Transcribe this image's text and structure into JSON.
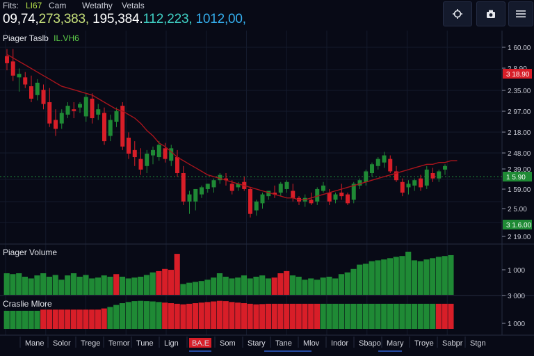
{
  "header": {
    "menu": [
      "Fits:",
      "LI67",
      "Cam",
      "Wetathy",
      "Vetals"
    ],
    "ticker": [
      {
        "text": "09,74,",
        "color": "#ffffff"
      },
      {
        "text": "273,383,",
        "color": "#c6e07a"
      },
      {
        "text": "195,384.",
        "color": "#ffffff"
      },
      {
        "text": "112,223,",
        "color": "#3fd0c4"
      },
      {
        "text": "1012,00,",
        "color": "#35b0f0"
      }
    ],
    "buttons": [
      {
        "name": "target-button",
        "icon": "crosshair-icon"
      },
      {
        "name": "screenshot-button",
        "icon": "camera-icon"
      },
      {
        "name": "menu-button",
        "icon": "hamburger-icon"
      }
    ]
  },
  "panels": {
    "price": {
      "label": "Piager Taslb",
      "sublabel": "IL.VH6"
    },
    "volume": {
      "label": "Piager Volume"
    },
    "strength": {
      "label": "Craslie Mlore"
    }
  },
  "colors": {
    "up": "#1f8a35",
    "down": "#d81e28",
    "ma": "#a8141c",
    "background": "#080a16"
  },
  "chart_data": [
    {
      "type": "candlestick",
      "title": "Piager Taslb",
      "y_tick_labels": [
        "1 60.00",
        "2 8.90",
        "2.35.00",
        "2 97.00",
        "2 18.00",
        "2 48.00",
        "2 39.00",
        "1 59.00",
        "2 5.00",
        "2 19.00"
      ],
      "price_tags": [
        {
          "text": "3 18.90",
          "color": "#d81e28"
        },
        {
          "text": "1 5.90",
          "color": "#1f8a35"
        },
        {
          "text": "3 1.6.00",
          "color": "#1f8a35"
        }
      ],
      "ylim": [
        0,
        1
      ],
      "candles": [
        {
          "o": 0.86,
          "h": 0.9,
          "l": 0.78,
          "c": 0.82
        },
        {
          "o": 0.83,
          "h": 0.9,
          "l": 0.72,
          "c": 0.75
        },
        {
          "o": 0.74,
          "h": 0.79,
          "l": 0.66,
          "c": 0.76
        },
        {
          "o": 0.74,
          "h": 0.77,
          "l": 0.68,
          "c": 0.7
        },
        {
          "o": 0.69,
          "h": 0.75,
          "l": 0.6,
          "c": 0.62
        },
        {
          "o": 0.64,
          "h": 0.73,
          "l": 0.61,
          "c": 0.71
        },
        {
          "o": 0.67,
          "h": 0.7,
          "l": 0.56,
          "c": 0.59
        },
        {
          "o": 0.6,
          "h": 0.68,
          "l": 0.46,
          "c": 0.48
        },
        {
          "o": 0.5,
          "h": 0.56,
          "l": 0.41,
          "c": 0.45
        },
        {
          "o": 0.48,
          "h": 0.56,
          "l": 0.45,
          "c": 0.54
        },
        {
          "o": 0.53,
          "h": 0.6,
          "l": 0.51,
          "c": 0.58
        },
        {
          "o": 0.56,
          "h": 0.6,
          "l": 0.51,
          "c": 0.55
        },
        {
          "o": 0.57,
          "h": 0.6,
          "l": 0.54,
          "c": 0.59
        },
        {
          "o": 0.52,
          "h": 0.65,
          "l": 0.49,
          "c": 0.63
        },
        {
          "o": 0.62,
          "h": 0.65,
          "l": 0.48,
          "c": 0.51
        },
        {
          "o": 0.53,
          "h": 0.59,
          "l": 0.5,
          "c": 0.56
        },
        {
          "o": 0.54,
          "h": 0.57,
          "l": 0.36,
          "c": 0.38
        },
        {
          "o": 0.41,
          "h": 0.53,
          "l": 0.38,
          "c": 0.5
        },
        {
          "o": 0.49,
          "h": 0.57,
          "l": 0.46,
          "c": 0.55
        },
        {
          "o": 0.58,
          "h": 0.6,
          "l": 0.33,
          "c": 0.35
        },
        {
          "o": 0.4,
          "h": 0.43,
          "l": 0.28,
          "c": 0.31
        },
        {
          "o": 0.33,
          "h": 0.38,
          "l": 0.24,
          "c": 0.29
        },
        {
          "o": 0.28,
          "h": 0.34,
          "l": 0.19,
          "c": 0.22
        },
        {
          "o": 0.24,
          "h": 0.33,
          "l": 0.2,
          "c": 0.31
        },
        {
          "o": 0.3,
          "h": 0.35,
          "l": 0.25,
          "c": 0.33
        },
        {
          "o": 0.29,
          "h": 0.38,
          "l": 0.27,
          "c": 0.36
        },
        {
          "o": 0.34,
          "h": 0.37,
          "l": 0.26,
          "c": 0.28
        },
        {
          "o": 0.27,
          "h": 0.36,
          "l": 0.24,
          "c": 0.34
        },
        {
          "o": 0.29,
          "h": 0.33,
          "l": 0.18,
          "c": 0.2
        },
        {
          "o": 0.2,
          "h": 0.24,
          "l": 0.02,
          "c": 0.04
        },
        {
          "o": 0.04,
          "h": 0.1,
          "l": -0.03,
          "c": 0.08
        },
        {
          "o": 0.04,
          "h": 0.11,
          "l": -0.01,
          "c": 0.11
        },
        {
          "o": 0.08,
          "h": 0.13,
          "l": 0.06,
          "c": 0.12
        },
        {
          "o": 0.11,
          "h": 0.14,
          "l": 0.09,
          "c": 0.14
        },
        {
          "o": 0.12,
          "h": 0.17,
          "l": 0.09,
          "c": 0.16
        },
        {
          "o": 0.16,
          "h": 0.2,
          "l": 0.14,
          "c": 0.19
        },
        {
          "o": 0.17,
          "h": 0.2,
          "l": 0.13,
          "c": 0.16
        },
        {
          "o": 0.14,
          "h": 0.16,
          "l": 0.08,
          "c": 0.1
        },
        {
          "o": 0.12,
          "h": 0.15,
          "l": 0.1,
          "c": 0.14
        },
        {
          "o": 0.15,
          "h": 0.18,
          "l": 0.1,
          "c": 0.11
        },
        {
          "o": 0.11,
          "h": 0.12,
          "l": -0.05,
          "c": -0.03
        },
        {
          "o": -0.01,
          "h": 0.05,
          "l": -0.04,
          "c": 0.04
        },
        {
          "o": 0.03,
          "h": 0.09,
          "l": 0.0,
          "c": 0.08
        },
        {
          "o": 0.07,
          "h": 0.1,
          "l": 0.05,
          "c": 0.1
        },
        {
          "o": 0.09,
          "h": 0.13,
          "l": 0.06,
          "c": 0.08
        },
        {
          "o": 0.09,
          "h": 0.15,
          "l": 0.07,
          "c": 0.14
        },
        {
          "o": 0.11,
          "h": 0.16,
          "l": 0.09,
          "c": 0.15
        },
        {
          "o": 0.1,
          "h": 0.14,
          "l": 0.04,
          "c": 0.06
        },
        {
          "o": 0.06,
          "h": 0.07,
          "l": 0.02,
          "c": 0.04
        },
        {
          "o": 0.04,
          "h": 0.08,
          "l": 0.01,
          "c": 0.06
        },
        {
          "o": 0.05,
          "h": 0.09,
          "l": 0.02,
          "c": 0.03
        },
        {
          "o": 0.04,
          "h": 0.12,
          "l": 0.02,
          "c": 0.11
        },
        {
          "o": 0.1,
          "h": 0.15,
          "l": 0.09,
          "c": 0.13
        },
        {
          "o": 0.09,
          "h": 0.11,
          "l": 0.02,
          "c": 0.04
        },
        {
          "o": 0.05,
          "h": 0.09,
          "l": 0.03,
          "c": 0.08
        },
        {
          "o": 0.09,
          "h": 0.14,
          "l": 0.05,
          "c": 0.07
        },
        {
          "o": 0.08,
          "h": 0.09,
          "l": 0.02,
          "c": 0.03
        },
        {
          "o": 0.05,
          "h": 0.15,
          "l": 0.03,
          "c": 0.14
        },
        {
          "o": 0.13,
          "h": 0.17,
          "l": 0.11,
          "c": 0.16
        },
        {
          "o": 0.15,
          "h": 0.22,
          "l": 0.13,
          "c": 0.21
        },
        {
          "o": 0.2,
          "h": 0.26,
          "l": 0.18,
          "c": 0.25
        },
        {
          "o": 0.24,
          "h": 0.29,
          "l": 0.22,
          "c": 0.28
        },
        {
          "o": 0.26,
          "h": 0.32,
          "l": 0.23,
          "c": 0.3
        },
        {
          "o": 0.28,
          "h": 0.3,
          "l": 0.2,
          "c": 0.21
        },
        {
          "o": 0.21,
          "h": 0.24,
          "l": 0.15,
          "c": 0.16
        },
        {
          "o": 0.15,
          "h": 0.17,
          "l": 0.07,
          "c": 0.09
        },
        {
          "o": 0.12,
          "h": 0.16,
          "l": 0.08,
          "c": 0.14
        },
        {
          "o": 0.13,
          "h": 0.17,
          "l": 0.1,
          "c": 0.16
        },
        {
          "o": 0.17,
          "h": 0.19,
          "l": 0.1,
          "c": 0.12
        },
        {
          "o": 0.13,
          "h": 0.24,
          "l": 0.11,
          "c": 0.22
        },
        {
          "o": 0.2,
          "h": 0.23,
          "l": 0.15,
          "c": 0.17
        },
        {
          "o": 0.17,
          "h": 0.22,
          "l": 0.15,
          "c": 0.21
        },
        {
          "o": 0.22,
          "h": 0.25,
          "l": 0.19,
          "c": 0.24
        }
      ],
      "ma": [
        0.87,
        0.85,
        0.83,
        0.81,
        0.79,
        0.77,
        0.75,
        0.73,
        0.71,
        0.69,
        0.68,
        0.67,
        0.66,
        0.65,
        0.64,
        0.62,
        0.6,
        0.58,
        0.56,
        0.55,
        0.53,
        0.51,
        0.48,
        0.44,
        0.41,
        0.37,
        0.35,
        0.32,
        0.29,
        0.27,
        0.25,
        0.23,
        0.21,
        0.19,
        0.18,
        0.17,
        0.16,
        0.15,
        0.14,
        0.13,
        0.12,
        0.11,
        0.1,
        0.09,
        0.08,
        0.07,
        0.06,
        0.06,
        0.05,
        0.05,
        0.06,
        0.07,
        0.08,
        0.09,
        0.1,
        0.11,
        0.12,
        0.13,
        0.14,
        0.15,
        0.16,
        0.17,
        0.18,
        0.19,
        0.2,
        0.21,
        0.22,
        0.23,
        0.24,
        0.25,
        0.25,
        0.26,
        0.26,
        0.27,
        0.27
      ]
    },
    {
      "type": "bar",
      "title": "Piager Volume",
      "y_tick_labels": [
        "1 000",
        "3 000"
      ],
      "values": [
        0.5,
        0.48,
        0.5,
        0.42,
        0.38,
        0.45,
        0.5,
        0.42,
        0.46,
        0.35,
        0.45,
        0.5,
        0.42,
        0.46,
        0.38,
        0.4,
        0.45,
        0.42,
        0.48,
        0.42,
        0.38,
        0.4,
        0.42,
        0.46,
        0.52,
        0.55,
        0.6,
        0.58,
        0.95,
        0.25,
        0.28,
        0.3,
        0.32,
        0.35,
        0.4,
        0.5,
        0.42,
        0.38,
        0.4,
        0.45,
        0.38,
        0.42,
        0.45,
        0.38,
        0.4,
        0.5,
        0.55,
        0.45,
        0.42,
        0.35,
        0.38,
        0.35,
        0.4,
        0.42,
        0.38,
        0.48,
        0.52,
        0.6,
        0.7,
        0.72,
        0.78,
        0.8,
        0.82,
        0.85,
        0.88,
        0.9,
        1.0,
        0.8,
        0.78,
        0.82,
        0.85,
        0.88,
        0.9,
        0.92
      ],
      "colors": [
        "up",
        "up",
        "up",
        "up",
        "up",
        "up",
        "up",
        "up",
        "up",
        "up",
        "up",
        "up",
        "up",
        "up",
        "up",
        "up",
        "up",
        "up",
        "down",
        "up",
        "up",
        "up",
        "up",
        "up",
        "up",
        "down",
        "down",
        "down",
        "down",
        "up",
        "up",
        "up",
        "up",
        "up",
        "up",
        "up",
        "up",
        "up",
        "up",
        "up",
        "up",
        "up",
        "up",
        "up",
        "down",
        "down",
        "down",
        "up",
        "up",
        "up",
        "up",
        "up",
        "up",
        "up",
        "up",
        "up",
        "up",
        "up",
        "up",
        "up",
        "up",
        "up",
        "up",
        "up",
        "up",
        "up",
        "up",
        "up",
        "up",
        "up",
        "up",
        "up",
        "up",
        "up"
      ]
    },
    {
      "type": "bar",
      "title": "Craslie Mlore",
      "y_tick_labels": [
        "1 000"
      ],
      "values": [
        0.62,
        0.62,
        0.62,
        0.62,
        0.62,
        0.62,
        0.66,
        0.66,
        0.66,
        0.66,
        0.66,
        0.66,
        0.66,
        0.66,
        0.66,
        0.66,
        0.7,
        0.75,
        0.82,
        0.88,
        0.92,
        0.95,
        0.96,
        0.95,
        0.94,
        0.92,
        0.9,
        0.88,
        0.86,
        0.84,
        0.86,
        0.88,
        0.9,
        0.92,
        0.94,
        0.96,
        0.95,
        0.92,
        0.9,
        0.88,
        0.86,
        0.84,
        0.85,
        0.86,
        0.86,
        0.86,
        0.86,
        0.86,
        0.86,
        0.86,
        0.86,
        0.86,
        0.86,
        0.86,
        0.86,
        0.86,
        0.86,
        0.86,
        0.86,
        0.86,
        0.86,
        0.86,
        0.86,
        0.86,
        0.86,
        0.86,
        0.86,
        0.86,
        0.86,
        0.86,
        0.86,
        0.86,
        0.86,
        0.86
      ],
      "colors": [
        "up",
        "up",
        "up",
        "up",
        "up",
        "up",
        "down",
        "down",
        "down",
        "down",
        "down",
        "down",
        "down",
        "down",
        "down",
        "down",
        "down",
        "up",
        "up",
        "up",
        "up",
        "up",
        "up",
        "up",
        "up",
        "up",
        "down",
        "down",
        "down",
        "down",
        "down",
        "down",
        "down",
        "down",
        "down",
        "down",
        "down",
        "down",
        "down",
        "down",
        "down",
        "down",
        "down",
        "down",
        "down",
        "down",
        "down",
        "down",
        "down",
        "down",
        "down",
        "down",
        "up",
        "up",
        "up",
        "up",
        "up",
        "up",
        "up",
        "up",
        "up",
        "up",
        "up",
        "up",
        "up",
        "up",
        "up",
        "up",
        "up",
        "up",
        "up",
        "down",
        "down",
        "down"
      ]
    }
  ],
  "time_axis": {
    "labels": [
      "Mane",
      "Solor",
      "Trege",
      "Temor",
      "Tune",
      "Lign",
      "BA.E",
      "Som",
      "Stary",
      "Tane",
      "Mlov",
      "Indor",
      "Sbapo",
      "Mary",
      "Troye",
      "Sabpr",
      "Stgn"
    ],
    "highlight_index": 6
  }
}
